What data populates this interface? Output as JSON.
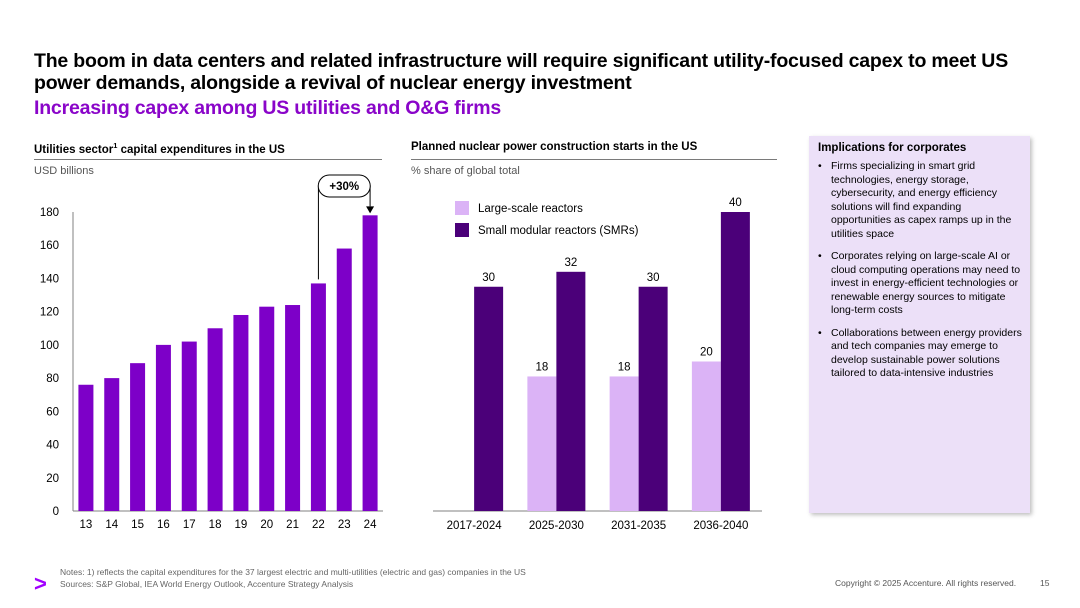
{
  "header": {
    "title": "The boom in data centers and related infrastructure will require significant utility-focused capex to meet US power demands, alongside a revival of nuclear energy investment",
    "subtitle": "Increasing capex among US utilities and O&G firms"
  },
  "left_chart": {
    "title_main": "Utilities sector",
    "title_sup": "1",
    "title_rest": " capital expenditures in the US",
    "unit": "USD billions",
    "annotation": "+30%"
  },
  "right_chart": {
    "title": "Planned nuclear power construction starts in the US",
    "unit": "% share of global total"
  },
  "colors": {
    "utilities_bar": "#7d00c8",
    "large_scale": "#dbb3f6",
    "smr": "#4b0079",
    "accent": "#a100ff",
    "panel_bg": "#ece0f8"
  },
  "chart_data": [
    {
      "type": "bar",
      "title": "Utilities sector capital expenditures in the US",
      "ylabel": "USD billions",
      "categories": [
        "13",
        "14",
        "15",
        "16",
        "17",
        "18",
        "19",
        "20",
        "21",
        "22",
        "23",
        "24"
      ],
      "values": [
        76,
        80,
        89,
        100,
        102,
        110,
        118,
        123,
        124,
        137,
        158,
        178
      ],
      "ylim": [
        0,
        180
      ],
      "yticks": [
        0,
        20,
        40,
        60,
        80,
        100,
        120,
        140,
        160,
        180
      ],
      "annotation": {
        "label": "+30%",
        "from": "22",
        "to": "24"
      }
    },
    {
      "type": "bar",
      "title": "Planned nuclear power construction starts in the US",
      "ylabel": "% share of global total",
      "categories": [
        "2017-2024",
        "2025-2030",
        "2031-2035",
        "2036-2040"
      ],
      "ylim": [
        0,
        45
      ],
      "series": [
        {
          "name": "Large-scale reactors",
          "values": [
            null,
            18,
            18,
            20
          ]
        },
        {
          "name": "Small modular reactors (SMRs)",
          "values": [
            30,
            32,
            30,
            40
          ]
        }
      ],
      "legend": "top-left"
    }
  ],
  "implications": {
    "title": "Implications for corporates",
    "bullets": [
      "Firms specializing in smart grid technologies, energy storage, cybersecurity, and energy efficiency solutions will find expanding opportunities as capex ramps up in the utilities space",
      "Corporates relying on large-scale AI or cloud computing operations may need to invest in energy-efficient technologies or renewable energy sources to mitigate long-term costs",
      "Collaborations between energy providers and tech companies may emerge to develop sustainable power solutions tailored to data-intensive industries"
    ]
  },
  "footer": {
    "notes": "Notes: 1) reflects the capital expenditures for the 37 largest electric and multi-utilities (electric and gas) companies in the US",
    "sources": "Sources: S&P Global, IEA World Energy Outlook, Accenture Strategy Analysis",
    "logo": ">",
    "copyright": "Copyright © 2025 Accenture. All rights reserved.",
    "page": "15"
  }
}
